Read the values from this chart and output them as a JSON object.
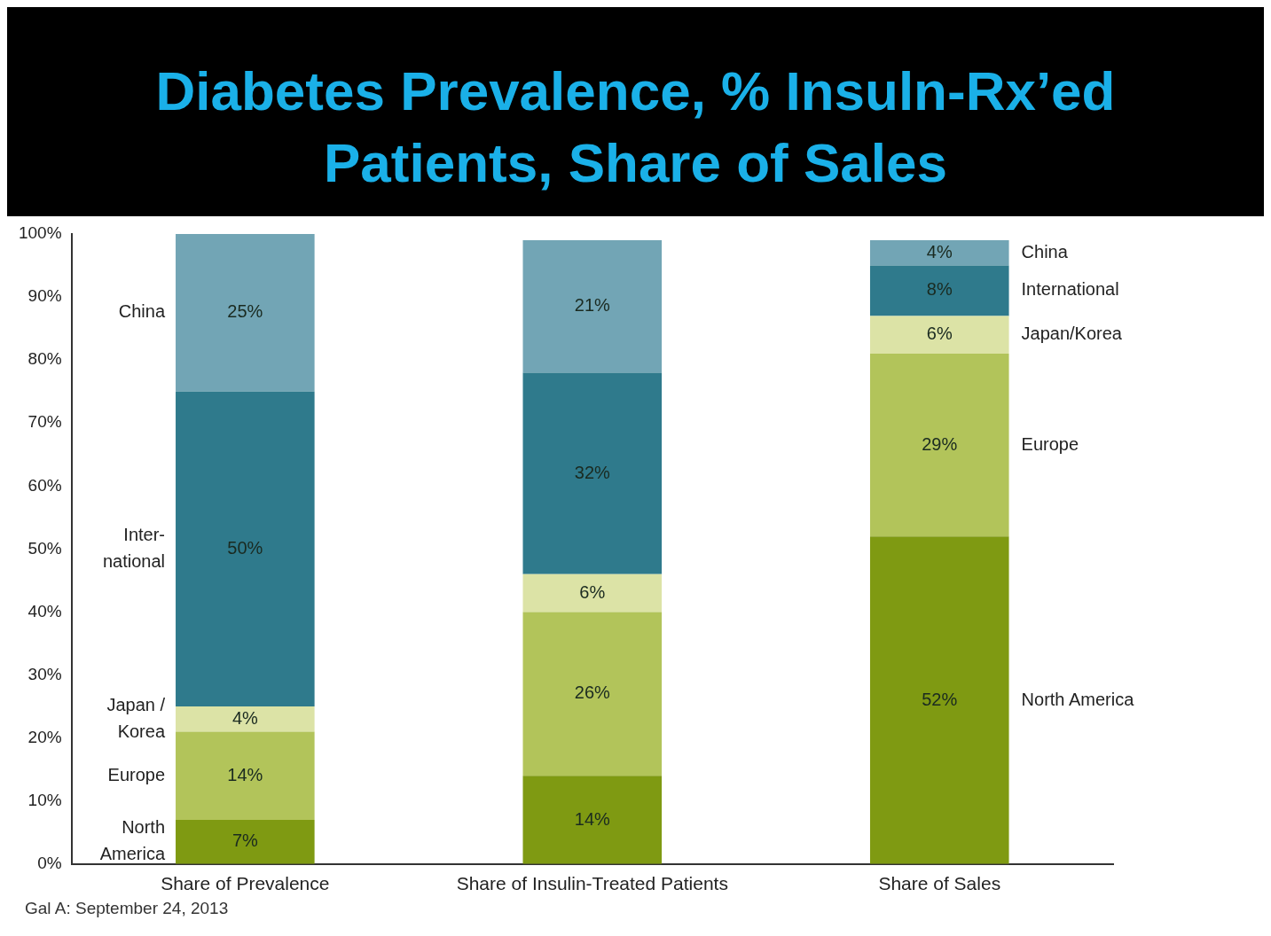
{
  "chart_data": {
    "type": "bar",
    "title": "Diabetes Prevalence, % Insuln-Rx’ed Patients, Share of Sales",
    "stacked": true,
    "categories": [
      "Share of Prevalence",
      "Share of Insulin-Treated Patients",
      "Share of Sales"
    ],
    "series": [
      {
        "name": "North America",
        "color": "#7f9a12",
        "values": [
          7,
          14,
          52
        ],
        "value_labels": [
          "7%",
          "14%",
          "52%"
        ]
      },
      {
        "name": "Europe",
        "color": "#b2c45a",
        "values": [
          14,
          26,
          29
        ],
        "value_labels": [
          "14%",
          "26%",
          "29%"
        ]
      },
      {
        "name": "Japan/Korea",
        "color": "#dce3a6",
        "values": [
          4,
          6,
          6
        ],
        "value_labels": [
          "4%",
          "6%",
          "6%"
        ]
      },
      {
        "name": "International",
        "color": "#2f7a8c",
        "values": [
          50,
          32,
          8
        ],
        "value_labels": [
          "50%",
          "32%",
          "8%"
        ]
      },
      {
        "name": "China",
        "color": "#72a5b5",
        "values": [
          25,
          21,
          4
        ],
        "value_labels": [
          "25%",
          "21%",
          "4%"
        ]
      }
    ],
    "ylim": [
      0,
      100
    ],
    "yticks": [
      {
        "value": 0,
        "label": "0%"
      },
      {
        "value": 10,
        "label": "10%"
      },
      {
        "value": 20,
        "label": "20%"
      },
      {
        "value": 30,
        "label": "30%"
      },
      {
        "value": 40,
        "label": "40%"
      },
      {
        "value": 50,
        "label": "50%"
      },
      {
        "value": 60,
        "label": "60%"
      },
      {
        "value": 70,
        "label": "70%"
      },
      {
        "value": 80,
        "label": "80%"
      },
      {
        "value": 90,
        "label": "90%"
      },
      {
        "value": 100,
        "label": "100%"
      }
    ],
    "legend": false,
    "grid": false,
    "annotations": [
      "North\nAmerica",
      "Europe",
      "Japan /\nKorea",
      "Inter-\nnational",
      "China",
      "Gal A: September 24, 2013"
    ]
  }
}
